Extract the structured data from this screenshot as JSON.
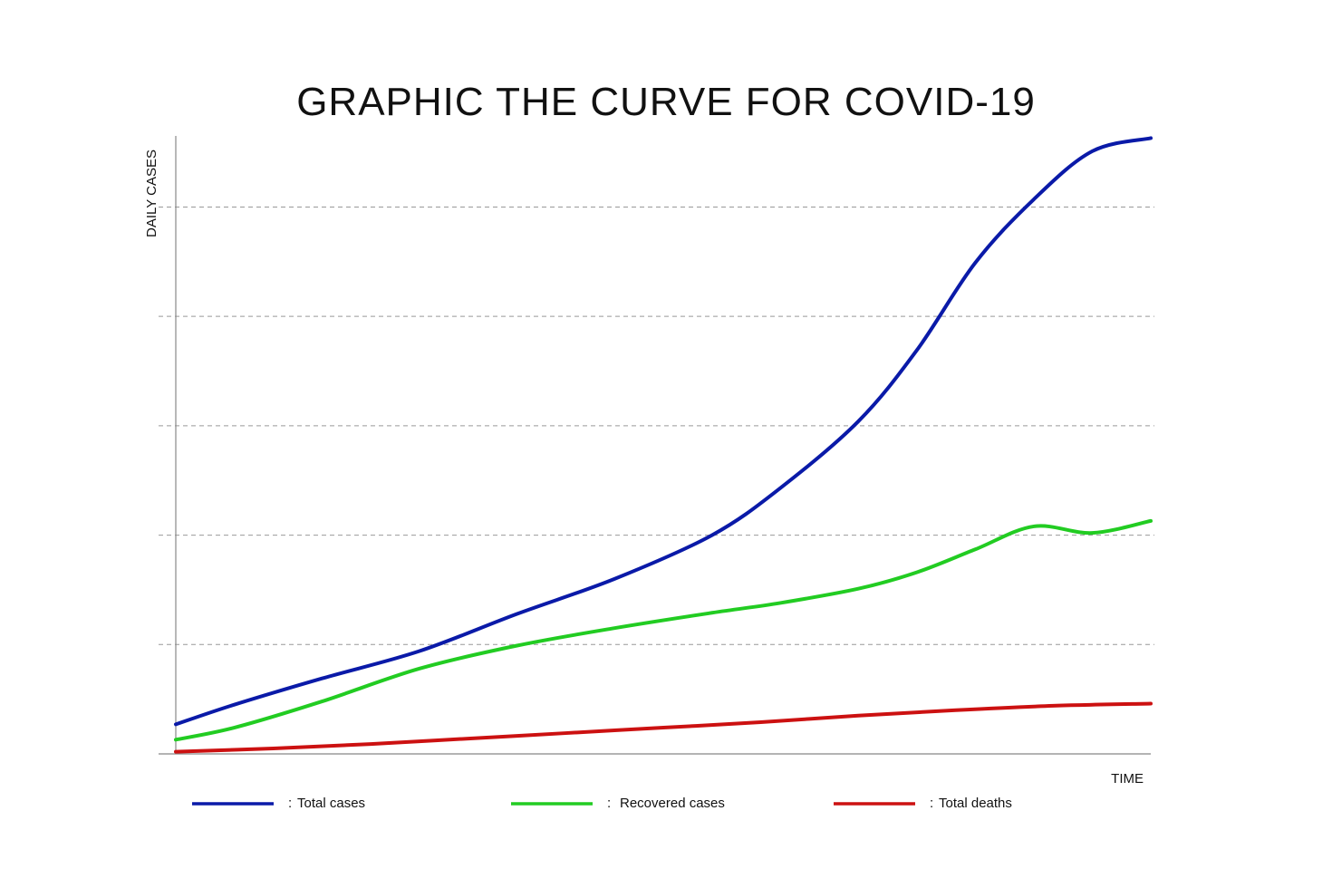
{
  "chart_data": {
    "type": "line",
    "title": "GRAPHIC THE CURVE FOR COVID-19",
    "xlabel": "TIME",
    "ylabel": "DAILY CASES",
    "ylim": [
      0,
      5.65
    ],
    "xlim": [
      0,
      1
    ],
    "grid": true,
    "legend_position": "bottom",
    "series": [
      {
        "name": "Total cases",
        "color": "#0a1aa8",
        "x": [
          0,
          0.06,
          0.15,
          0.25,
          0.35,
          0.45,
          0.55,
          0.62,
          0.7,
          0.76,
          0.82,
          0.88,
          0.94,
          1.0
        ],
        "y": [
          0.27,
          0.45,
          0.69,
          0.94,
          1.28,
          1.6,
          2.0,
          2.43,
          3.04,
          3.69,
          4.49,
          5.07,
          5.51,
          5.63
        ]
      },
      {
        "name": "Recovered cases",
        "color": "#22cc22",
        "x": [
          0,
          0.06,
          0.15,
          0.25,
          0.35,
          0.45,
          0.55,
          0.62,
          0.7,
          0.76,
          0.82,
          0.88,
          0.94,
          1.0
        ],
        "y": [
          0.13,
          0.24,
          0.48,
          0.78,
          0.99,
          1.15,
          1.29,
          1.38,
          1.51,
          1.66,
          1.87,
          2.08,
          2.02,
          2.13
        ]
      },
      {
        "name": "Total deaths",
        "color": "#cc1111",
        "x": [
          0,
          0.1,
          0.2,
          0.3,
          0.4,
          0.5,
          0.6,
          0.7,
          0.8,
          0.9,
          1.0
        ],
        "y": [
          0.02,
          0.05,
          0.09,
          0.14,
          0.19,
          0.24,
          0.29,
          0.35,
          0.4,
          0.44,
          0.46
        ]
      }
    ],
    "gridlines_y": [
      1,
      2,
      3,
      4,
      5
    ],
    "legend_separator": ":"
  }
}
